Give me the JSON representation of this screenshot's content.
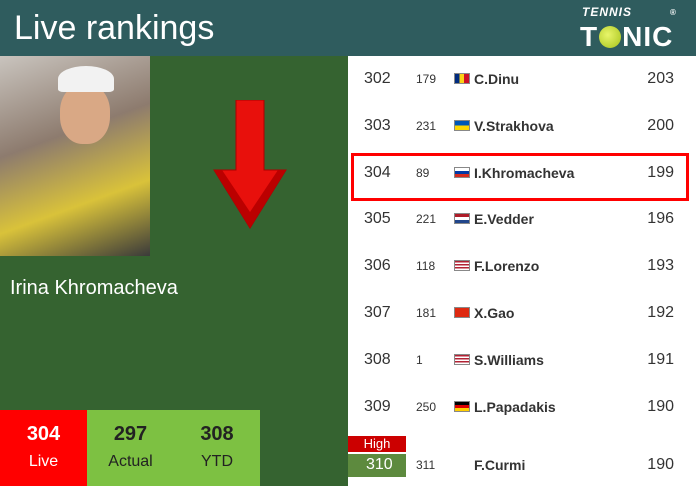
{
  "header": {
    "title": "Live rankings",
    "logo_top": "TENNIS",
    "logo_bottom": [
      "T",
      "NIC"
    ]
  },
  "player": {
    "name": "Irina Khromacheva",
    "trend": "down"
  },
  "stats": [
    {
      "value": "304",
      "label": "Live",
      "color": "#ff0000"
    },
    {
      "value": "297",
      "label": "Actual",
      "color": "#7dc142"
    },
    {
      "value": "308",
      "label": "YTD",
      "color": "#7dc142"
    }
  ],
  "rankings": [
    {
      "rank": "302",
      "points_prev": "179",
      "country": "Romania",
      "name": "C.Dinu",
      "score": "203"
    },
    {
      "rank": "303",
      "points_prev": "231",
      "country": "Ukraine",
      "name": "V.Strakhova",
      "score": "200"
    },
    {
      "rank": "304",
      "points_prev": "89",
      "country": "Russia",
      "name": "I.Khromacheva",
      "score": "199",
      "highlighted": true
    },
    {
      "rank": "305",
      "points_prev": "221",
      "country": "Netherlands",
      "name": "E.Vedder",
      "score": "196"
    },
    {
      "rank": "306",
      "points_prev": "118",
      "country": "USA",
      "name": "F.Lorenzo",
      "score": "193"
    },
    {
      "rank": "307",
      "points_prev": "181",
      "country": "China",
      "name": "X.Gao",
      "score": "192"
    },
    {
      "rank": "308",
      "points_prev": "1",
      "country": "USA",
      "name": "S.Williams",
      "score": "191"
    },
    {
      "rank": "309",
      "points_prev": "250",
      "country": "Germany",
      "name": "L.Papadakis",
      "score": "190"
    },
    {
      "rank": "310",
      "points_prev": "311",
      "country": "",
      "name": "F.Curmi",
      "score": "190",
      "badge": "High"
    }
  ]
}
